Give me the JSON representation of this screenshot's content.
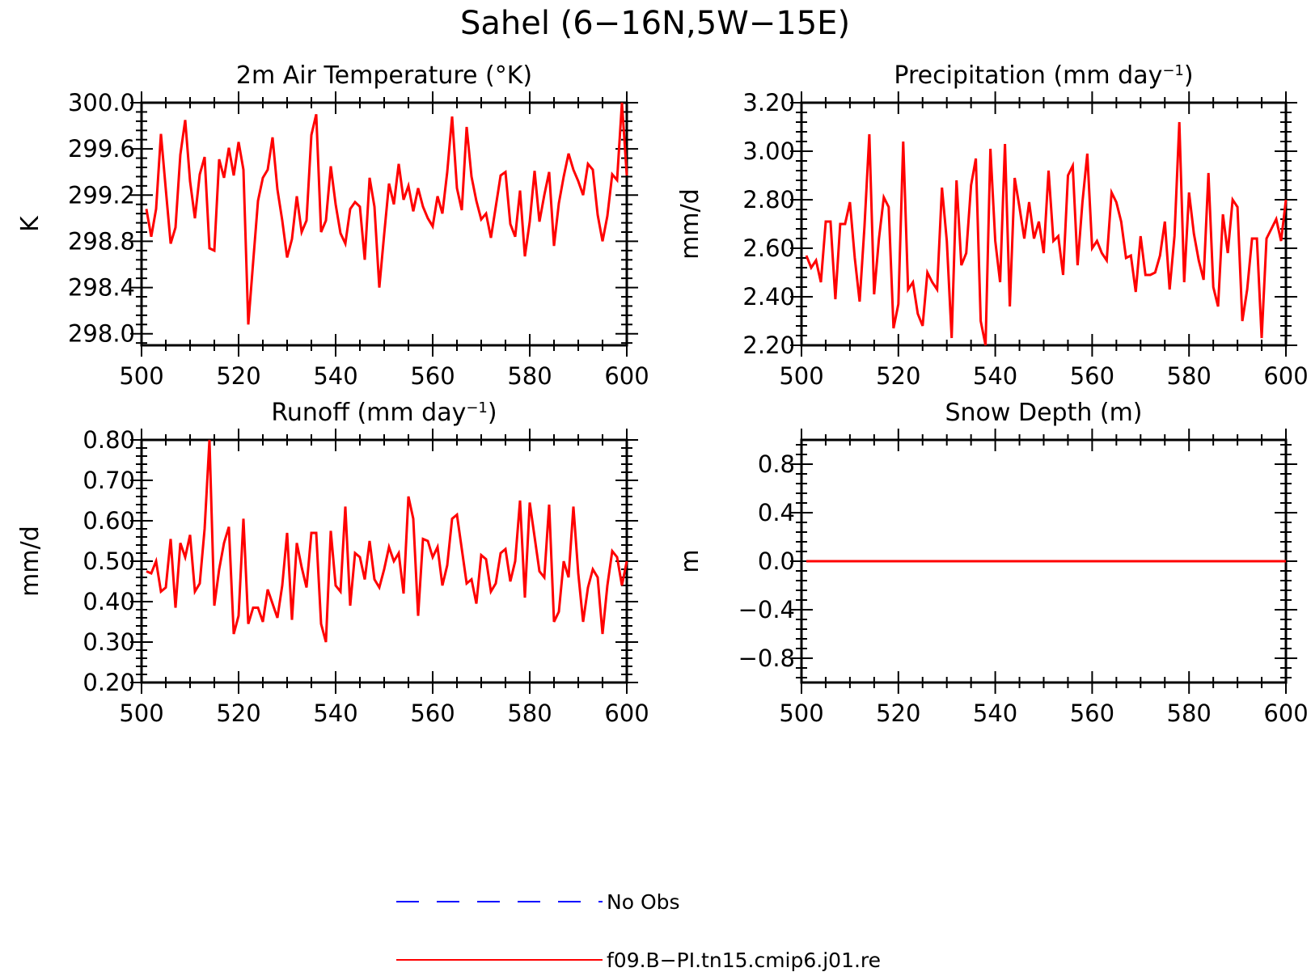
{
  "figure": {
    "title": "Sahel (6−16N,5W−15E)"
  },
  "chart_data": [
    {
      "type": "line",
      "title": "2m Air Temperature (°K)",
      "xlabel": "",
      "ylabel": "K",
      "xlim": [
        500,
        600
      ],
      "ylim": [
        297.9,
        300.0
      ],
      "xticks": [
        "500",
        "520",
        "540",
        "560",
        "580",
        "600"
      ],
      "yticks": [
        "298.0",
        "298.4",
        "298.8",
        "299.2",
        "299.6",
        "300.0"
      ],
      "grid": false,
      "series": [
        {
          "name": "f09.B−PI.tn15.cmip6.j01.re",
          "color": "#ff0000",
          "x": [
            501,
            502,
            503,
            504,
            505,
            506,
            507,
            508,
            509,
            510,
            511,
            512,
            513,
            514,
            515,
            516,
            517,
            518,
            519,
            520,
            521,
            522,
            523,
            524,
            525,
            526,
            527,
            528,
            529,
            530,
            531,
            532,
            533,
            534,
            535,
            536,
            537,
            538,
            539,
            540,
            541,
            542,
            543,
            544,
            545,
            546,
            547,
            548,
            549,
            550,
            551,
            552,
            553,
            554,
            555,
            556,
            557,
            558,
            559,
            560,
            561,
            562,
            563,
            564,
            565,
            566,
            567,
            568,
            569,
            570,
            571,
            572,
            573,
            574,
            575,
            576,
            577,
            578,
            579,
            580,
            581,
            582,
            583,
            584,
            585,
            586,
            587,
            588,
            589,
            590,
            591,
            592,
            593,
            594,
            595,
            596,
            597,
            598,
            599,
            600
          ],
          "values": [
            299.08,
            298.84,
            299.08,
            299.73,
            299.25,
            298.78,
            298.92,
            299.55,
            299.85,
            299.32,
            299.0,
            299.38,
            299.53,
            298.74,
            298.72,
            299.51,
            299.35,
            299.61,
            299.37,
            299.66,
            299.42,
            298.08,
            298.62,
            299.15,
            299.35,
            299.42,
            299.7,
            299.25,
            298.98,
            298.66,
            298.82,
            299.19,
            298.88,
            298.98,
            299.72,
            299.9,
            298.88,
            298.98,
            299.45,
            299.12,
            298.87,
            298.78,
            299.08,
            299.14,
            299.1,
            298.64,
            299.35,
            299.1,
            298.4,
            298.86,
            299.3,
            299.12,
            299.47,
            299.16,
            299.28,
            299.06,
            299.26,
            299.1,
            299.0,
            298.93,
            299.19,
            299.04,
            299.4,
            299.88,
            299.26,
            299.07,
            299.79,
            299.36,
            299.15,
            298.99,
            299.04,
            298.83,
            299.1,
            299.37,
            299.4,
            298.95,
            298.84,
            299.24,
            298.67,
            298.97,
            299.41,
            298.97,
            299.2,
            299.4,
            298.76,
            299.13,
            299.36,
            299.56,
            299.42,
            299.32,
            299.2,
            299.47,
            299.42,
            299.03,
            298.8,
            299.02,
            299.38,
            299.33,
            300.0,
            299.37
          ]
        }
      ]
    },
    {
      "type": "line",
      "title": "Precipitation (mm day⁻¹)",
      "xlabel": "",
      "ylabel": "mm/d",
      "xlim": [
        500,
        600
      ],
      "ylim": [
        2.2,
        3.2
      ],
      "xticks": [
        "500",
        "520",
        "540",
        "560",
        "580",
        "600"
      ],
      "yticks": [
        "2.20",
        "2.40",
        "2.60",
        "2.80",
        "3.00",
        "3.20"
      ],
      "grid": false,
      "series": [
        {
          "name": "f09.B−PI.tn15.cmip6.j01.re",
          "color": "#ff0000",
          "x": [
            501,
            502,
            503,
            504,
            505,
            506,
            507,
            508,
            509,
            510,
            511,
            512,
            513,
            514,
            515,
            516,
            517,
            518,
            519,
            520,
            521,
            522,
            523,
            524,
            525,
            526,
            527,
            528,
            529,
            530,
            531,
            532,
            533,
            534,
            535,
            536,
            537,
            538,
            539,
            540,
            541,
            542,
            543,
            544,
            545,
            546,
            547,
            548,
            549,
            550,
            551,
            552,
            553,
            554,
            555,
            556,
            557,
            558,
            559,
            560,
            561,
            562,
            563,
            564,
            565,
            566,
            567,
            568,
            569,
            570,
            571,
            572,
            573,
            574,
            575,
            576,
            577,
            578,
            579,
            580,
            581,
            582,
            583,
            584,
            585,
            586,
            587,
            588,
            589,
            590,
            591,
            592,
            593,
            594,
            595,
            596,
            597,
            598,
            599,
            600
          ],
          "values": [
            2.57,
            2.52,
            2.55,
            2.46,
            2.71,
            2.71,
            2.39,
            2.7,
            2.7,
            2.79,
            2.56,
            2.38,
            2.69,
            3.07,
            2.41,
            2.64,
            2.81,
            2.77,
            2.27,
            2.37,
            3.04,
            2.43,
            2.46,
            2.33,
            2.28,
            2.5,
            2.46,
            2.43,
            2.85,
            2.63,
            2.23,
            2.88,
            2.53,
            2.58,
            2.86,
            2.97,
            2.3,
            2.2,
            3.01,
            2.63,
            2.46,
            3.03,
            2.36,
            2.89,
            2.77,
            2.64,
            2.79,
            2.64,
            2.71,
            2.58,
            2.92,
            2.63,
            2.65,
            2.49,
            2.9,
            2.94,
            2.53,
            2.79,
            2.99,
            2.6,
            2.63,
            2.58,
            2.55,
            2.83,
            2.79,
            2.71,
            2.56,
            2.57,
            2.42,
            2.65,
            2.49,
            2.49,
            2.5,
            2.57,
            2.71,
            2.43,
            2.65,
            3.12,
            2.46,
            2.83,
            2.66,
            2.55,
            2.47,
            2.91,
            2.44,
            2.36,
            2.74,
            2.58,
            2.8,
            2.77,
            2.3,
            2.43,
            2.64,
            2.64,
            2.23,
            2.64,
            2.68,
            2.72,
            2.63,
            2.8
          ]
        }
      ]
    },
    {
      "type": "line",
      "title": "Runoff (mm day⁻¹)",
      "xlabel": "",
      "ylabel": "mm/d",
      "xlim": [
        500,
        600
      ],
      "ylim": [
        0.2,
        0.8
      ],
      "xticks": [
        "500",
        "520",
        "540",
        "560",
        "580",
        "600"
      ],
      "yticks": [
        "0.20",
        "0.30",
        "0.40",
        "0.50",
        "0.60",
        "0.70",
        "0.80"
      ],
      "grid": false,
      "series": [
        {
          "name": "f09.B−PI.tn15.cmip6.j01.re",
          "color": "#ff0000",
          "x": [
            501,
            502,
            503,
            504,
            505,
            506,
            507,
            508,
            509,
            510,
            511,
            512,
            513,
            514,
            515,
            516,
            517,
            518,
            519,
            520,
            521,
            522,
            523,
            524,
            525,
            526,
            527,
            528,
            529,
            530,
            531,
            532,
            533,
            534,
            535,
            536,
            537,
            538,
            539,
            540,
            541,
            542,
            543,
            544,
            545,
            546,
            547,
            548,
            549,
            550,
            551,
            552,
            553,
            554,
            555,
            556,
            557,
            558,
            559,
            560,
            561,
            562,
            563,
            564,
            565,
            566,
            567,
            568,
            569,
            570,
            571,
            572,
            573,
            574,
            575,
            576,
            577,
            578,
            579,
            580,
            581,
            582,
            583,
            584,
            585,
            586,
            587,
            588,
            589,
            590,
            591,
            592,
            593,
            594,
            595,
            596,
            597,
            598,
            599,
            600
          ],
          "values": [
            0.475,
            0.47,
            0.5,
            0.425,
            0.435,
            0.555,
            0.385,
            0.545,
            0.51,
            0.565,
            0.425,
            0.445,
            0.58,
            0.8,
            0.39,
            0.48,
            0.545,
            0.585,
            0.32,
            0.365,
            0.605,
            0.345,
            0.385,
            0.385,
            0.35,
            0.43,
            0.395,
            0.36,
            0.44,
            0.57,
            0.355,
            0.545,
            0.485,
            0.435,
            0.57,
            0.57,
            0.345,
            0.3,
            0.575,
            0.44,
            0.425,
            0.635,
            0.39,
            0.52,
            0.51,
            0.455,
            0.55,
            0.455,
            0.435,
            0.48,
            0.535,
            0.5,
            0.52,
            0.42,
            0.66,
            0.605,
            0.365,
            0.555,
            0.55,
            0.51,
            0.535,
            0.44,
            0.49,
            0.605,
            0.615,
            0.53,
            0.445,
            0.455,
            0.395,
            0.515,
            0.505,
            0.425,
            0.445,
            0.52,
            0.53,
            0.45,
            0.5,
            0.65,
            0.41,
            0.645,
            0.56,
            0.475,
            0.46,
            0.64,
            0.35,
            0.375,
            0.5,
            0.46,
            0.635,
            0.47,
            0.35,
            0.435,
            0.48,
            0.46,
            0.32,
            0.44,
            0.525,
            0.51,
            0.44,
            0.5
          ]
        }
      ]
    },
    {
      "type": "line",
      "title": "Snow Depth (m)",
      "xlabel": "",
      "ylabel": "m",
      "xlim": [
        500,
        600
      ],
      "ylim": [
        -1.0,
        1.0
      ],
      "xticks": [
        "500",
        "520",
        "540",
        "560",
        "580",
        "600"
      ],
      "yticks": [
        "−0.8",
        "−0.4",
        "0.0",
        "0.4",
        "0.8"
      ],
      "grid": false,
      "series": [
        {
          "name": "f09.B−PI.tn15.cmip6.j01.re",
          "color": "#ff0000",
          "x": [
            501,
            600
          ],
          "values": [
            0.0,
            0.0
          ]
        }
      ]
    }
  ],
  "legend": [
    {
      "label": "No Obs",
      "color": "#0000ff",
      "style": "dashed"
    },
    {
      "label": "f09.B−PI.tn15.cmip6.j01.re",
      "color": "#ff0000",
      "style": "solid"
    }
  ]
}
